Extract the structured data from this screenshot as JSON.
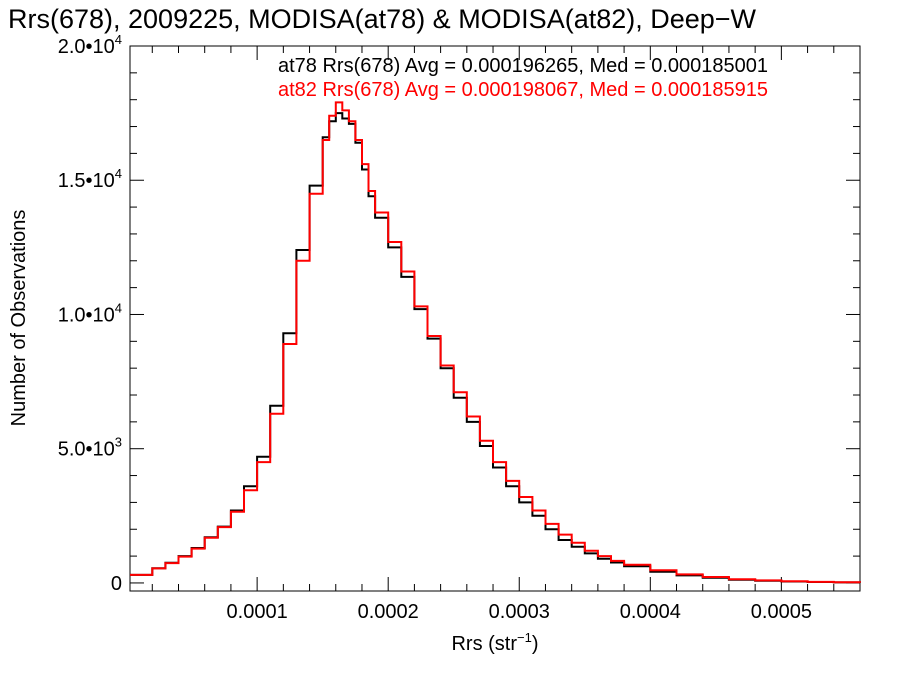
{
  "chart_data": {
    "type": "line",
    "title": "Rrs(678), 2009225, MODISA(at78) & MODISA(at82), Deep−W",
    "xlabel": {
      "base": "Rrs (str",
      "sup": "−1",
      "close": ")"
    },
    "ylabel": "Number of Observations",
    "xlim": [
      3e-06,
      0.00056
    ],
    "ylim": [
      -300,
      20000
    ],
    "grid": false,
    "x_ticks": [
      {
        "value": 0.0001,
        "label": "0.0001"
      },
      {
        "value": 0.0002,
        "label": "0.0002"
      },
      {
        "value": 0.0003,
        "label": "0.0003"
      },
      {
        "value": 0.0004,
        "label": "0.0004"
      },
      {
        "value": 0.0005,
        "label": "0.0005"
      }
    ],
    "y_ticks": [
      {
        "value": 0,
        "mant": "0",
        "exp": ""
      },
      {
        "value": 5000,
        "mant": "5.0•10",
        "exp": "3"
      },
      {
        "value": 10000,
        "mant": "1.0•10",
        "exp": "4"
      },
      {
        "value": 15000,
        "mant": "1.5•10",
        "exp": "4"
      },
      {
        "value": 20000,
        "mant": "2.0•10",
        "exp": "4"
      }
    ],
    "legend_position": "top-right",
    "annotations": [
      {
        "text": "at78 Rrs(678) Avg = 0.000196265, Med = 0.000185001",
        "color": "#000000"
      },
      {
        "text": "at82 Rrs(678) Avg = 0.000198067, Med = 0.000185915",
        "color": "#ff0000"
      }
    ],
    "series": [
      {
        "color": "#000000",
        "x": [
          3e-06,
          2e-05,
          3e-05,
          4e-05,
          5e-05,
          6e-05,
          7e-05,
          8e-05,
          9e-05,
          0.0001,
          0.00011,
          0.00012,
          0.00013,
          0.00014,
          0.00015,
          0.000155,
          0.00016,
          0.000165,
          0.00017,
          0.000175,
          0.00018,
          0.000185,
          0.00019,
          0.0002,
          0.00021,
          0.00022,
          0.00023,
          0.00024,
          0.00025,
          0.00026,
          0.00027,
          0.00028,
          0.00029,
          0.0003,
          0.00031,
          0.00032,
          0.00033,
          0.00034,
          0.00035,
          0.00036,
          0.00037,
          0.00038,
          0.0004,
          0.00042,
          0.00044,
          0.00046,
          0.00048,
          0.0005,
          0.00052,
          0.00054,
          0.00056
        ],
        "y": [
          300,
          550,
          750,
          1000,
          1300,
          1700,
          2100,
          2700,
          3600,
          4700,
          6600,
          9300,
          12400,
          14800,
          16600,
          17200,
          17500,
          17300,
          17100,
          16400,
          15400,
          14400,
          13600,
          12500,
          11400,
          10200,
          9100,
          8000,
          6900,
          6000,
          5100,
          4300,
          3600,
          3000,
          2500,
          2000,
          1600,
          1350,
          1100,
          900,
          760,
          620,
          420,
          280,
          190,
          120,
          80,
          55,
          35,
          20,
          10
        ]
      },
      {
        "color": "#ff0000",
        "x": [
          3e-06,
          2e-05,
          3e-05,
          4e-05,
          5e-05,
          6e-05,
          7e-05,
          8e-05,
          9e-05,
          0.0001,
          0.00011,
          0.00012,
          0.00013,
          0.00014,
          0.00015,
          0.000155,
          0.00016,
          0.000165,
          0.00017,
          0.000175,
          0.00018,
          0.000185,
          0.00019,
          0.0002,
          0.00021,
          0.00022,
          0.00023,
          0.00024,
          0.00025,
          0.00026,
          0.00027,
          0.00028,
          0.00029,
          0.0003,
          0.00031,
          0.00032,
          0.00033,
          0.00034,
          0.00035,
          0.00036,
          0.00037,
          0.00038,
          0.0004,
          0.00042,
          0.00044,
          0.00046,
          0.00048,
          0.0005,
          0.00052,
          0.00054,
          0.00056
        ],
        "y": [
          300,
          540,
          740,
          980,
          1280,
          1680,
          2080,
          2650,
          3450,
          4500,
          6300,
          8900,
          12000,
          14500,
          16500,
          17400,
          17900,
          17600,
          17200,
          16500,
          15600,
          14600,
          13800,
          12700,
          11600,
          10300,
          9200,
          8100,
          7100,
          6200,
          5300,
          4500,
          3800,
          3200,
          2700,
          2200,
          1800,
          1500,
          1200,
          1000,
          820,
          680,
          470,
          320,
          220,
          140,
          95,
          65,
          40,
          25,
          12
        ]
      }
    ]
  }
}
